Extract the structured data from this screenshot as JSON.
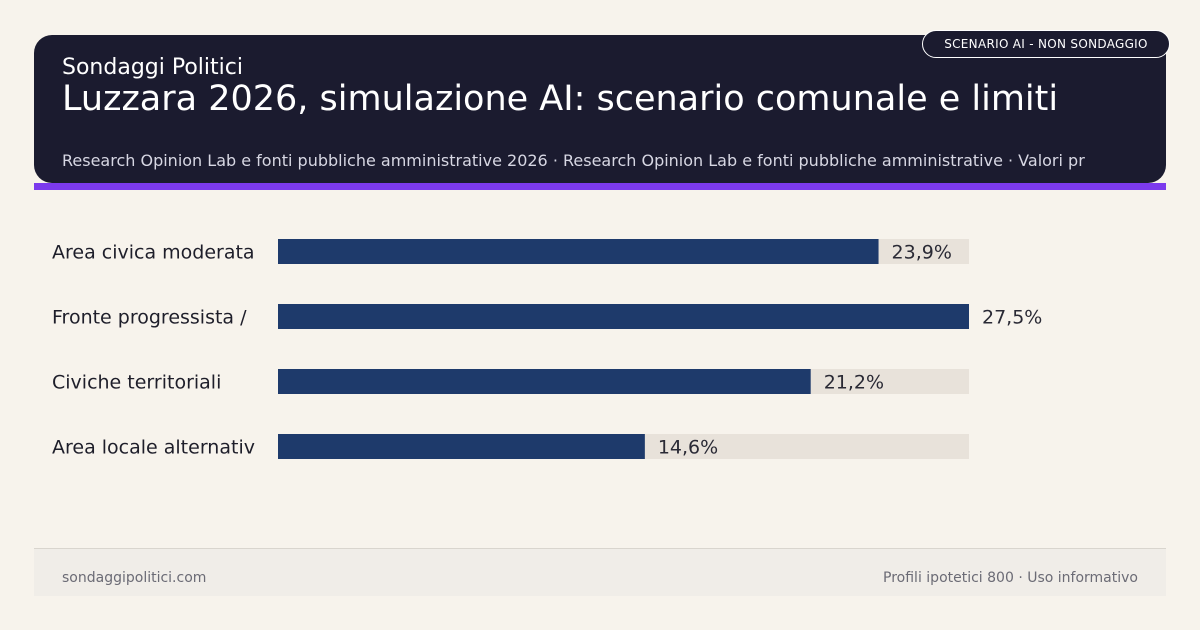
{
  "header": {
    "brand": "Sondaggi Politici",
    "title": "Luzzara 2026, simulazione AI: scenario comunale e limiti",
    "subtitle": "Research Opinion Lab e fonti pubbliche amministrative 2026 · Research Opinion Lab e fonti pubbliche amministrative · Valori pr",
    "badge": "SCENARIO AI - NON SONDAGGIO"
  },
  "colors": {
    "header_bg": "#1b1b2f",
    "accent": "#7c3aed",
    "bar": "#1e3a6b",
    "track": "#e8e2da",
    "background": "#f7f3ec"
  },
  "chart_data": {
    "type": "bar",
    "orientation": "horizontal",
    "categories": [
      "Area civica moderata",
      "Fronte progressista /",
      "Civiche territoriali",
      "Area locale alternativ"
    ],
    "values": [
      23.9,
      27.5,
      21.2,
      14.6
    ],
    "value_labels": [
      "23,9%",
      "27,5%",
      "21,2%",
      "14,6%"
    ],
    "unit": "%",
    "xlim": [
      0,
      27.5
    ],
    "grid": false,
    "legend": "none"
  },
  "footer": {
    "left": "sondaggipolitici.com",
    "right": "Profili ipotetici 800 · Uso informativo"
  }
}
